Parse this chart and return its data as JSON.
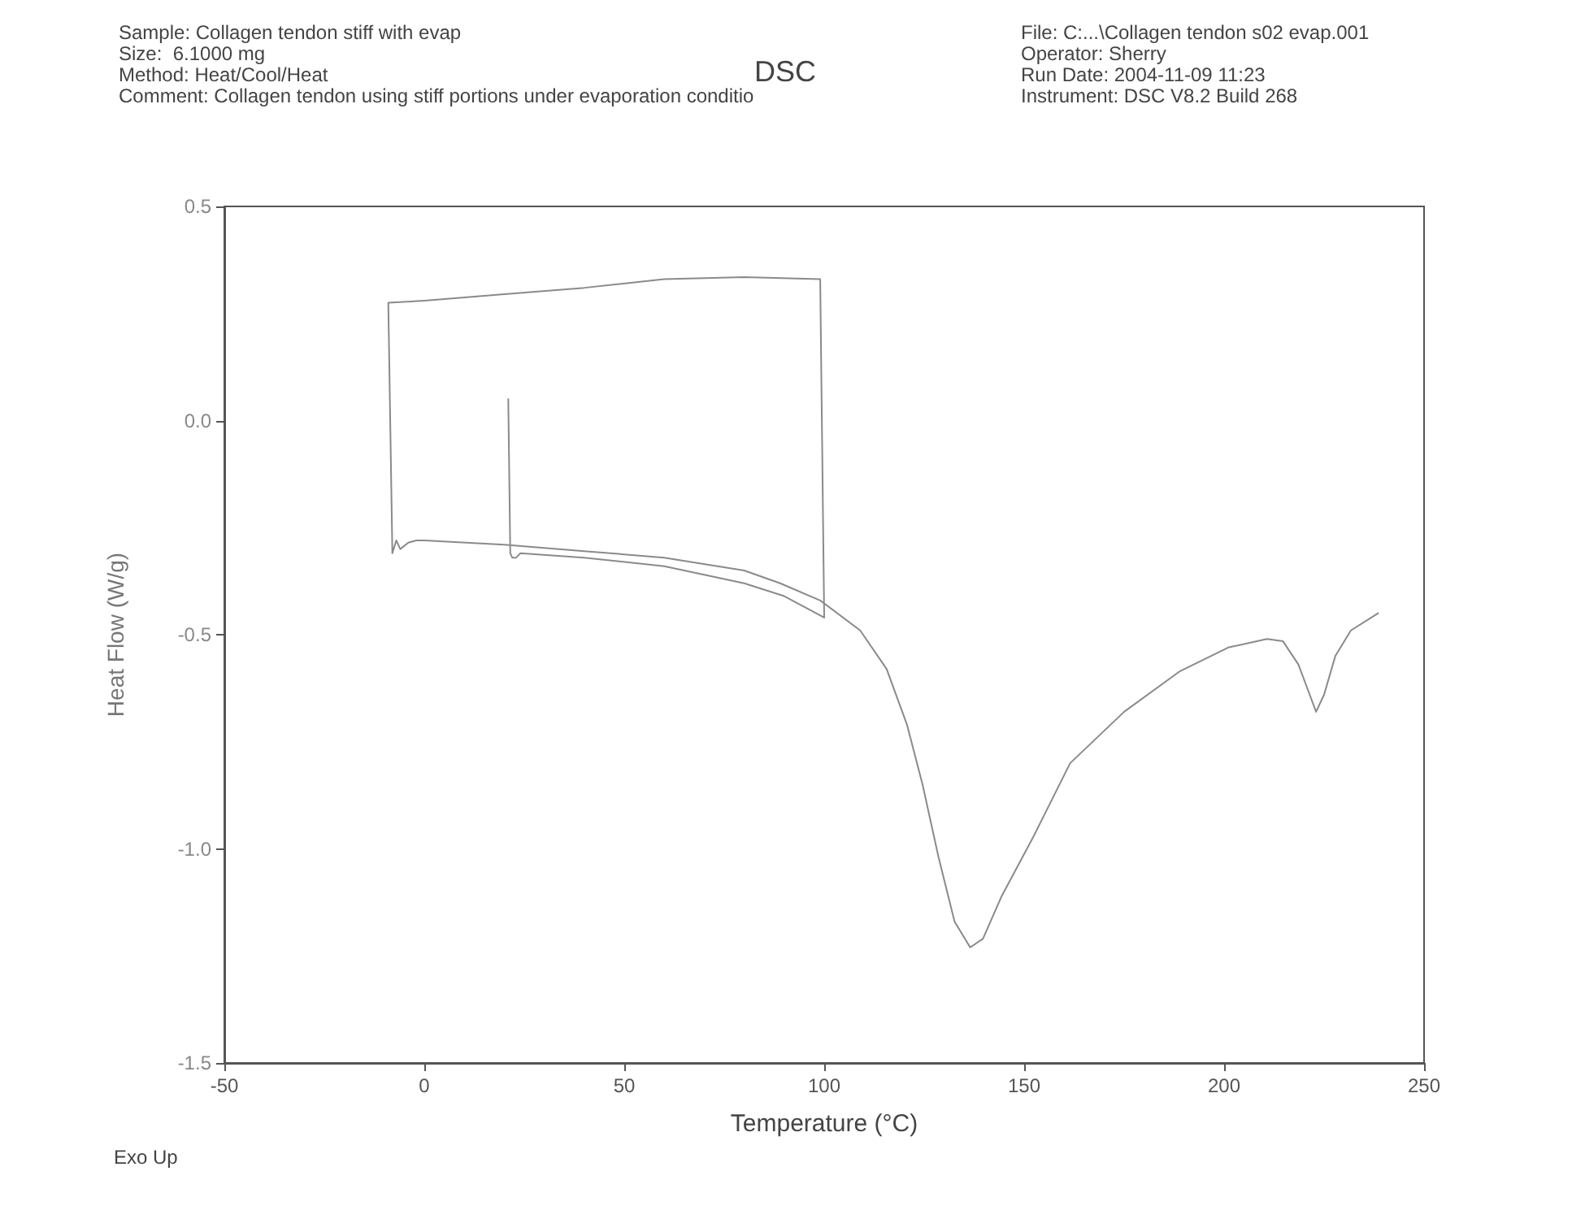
{
  "chart_data": {
    "type": "line",
    "title": "DSC",
    "xlabel": "Temperature (°C)",
    "ylabel": "Heat Flow (W/g)",
    "annotations": [
      "Sample: Collagen tendon stiff with evap",
      "Size:  6.1000 mg",
      "Method: Heat/Cool/Heat",
      "Comment: Collagen tendon using stiff portions under evaporation conditio",
      "File: C:...\\Collagen tendon s02 evap.001",
      "Operator: Sherry",
      "Run Date: 2004-11-09 11:23",
      "Instrument: DSC V8.2 Build 268",
      "Exo Up"
    ],
    "series": [
      {
        "color": "#8a8a8a",
        "x": [
          21,
          21.5,
          22,
          23,
          24,
          40,
          60,
          80,
          90,
          100,
          100,
          99,
          80,
          60,
          40,
          20,
          0,
          -9,
          -8,
          -8,
          -7,
          -6,
          -4,
          -2,
          0,
          20,
          40,
          60,
          80,
          89,
          99,
          109,
          115.6,
          120.7,
          124.6,
          128.6,
          132.6,
          136.5,
          139.7,
          144.4,
          152.4,
          161.5,
          175,
          189,
          201,
          210.7,
          214.7,
          218.6,
          221,
          223,
          225,
          227.8,
          231.7,
          238.5
        ],
        "values": [
          0.05,
          -0.31,
          -0.32,
          -0.32,
          -0.31,
          -0.32,
          -0.34,
          -0.38,
          -0.41,
          -0.46,
          -0.46,
          0.33,
          0.335,
          0.33,
          0.31,
          0.295,
          0.28,
          0.275,
          -0.3,
          -0.31,
          -0.28,
          -0.3,
          -0.285,
          -0.28,
          -0.28,
          -0.29,
          -0.305,
          -0.32,
          -0.35,
          -0.38,
          -0.42,
          -0.49,
          -0.58,
          -0.71,
          -0.85,
          -1.02,
          -1.17,
          -1.23,
          -1.21,
          -1.11,
          -0.97,
          -0.8,
          -0.68,
          -0.585,
          -0.53,
          -0.51,
          -0.515,
          -0.57,
          -0.63,
          -0.68,
          -0.64,
          -0.55,
          -0.49,
          -0.45
        ]
      }
    ],
    "xlim": [
      -50,
      250
    ],
    "xticks": [
      -50,
      0,
      50,
      100,
      150,
      200,
      250
    ],
    "ylim": [
      -1.5,
      0.5
    ],
    "yticks": [
      0.5,
      {
        "value": 0,
        "label": "0.0"
      },
      -0.5,
      {
        "value": -1,
        "label": "-1.0"
      },
      -1.5
    ],
    "grid": false,
    "marker": "none",
    "line_style": "solid"
  }
}
